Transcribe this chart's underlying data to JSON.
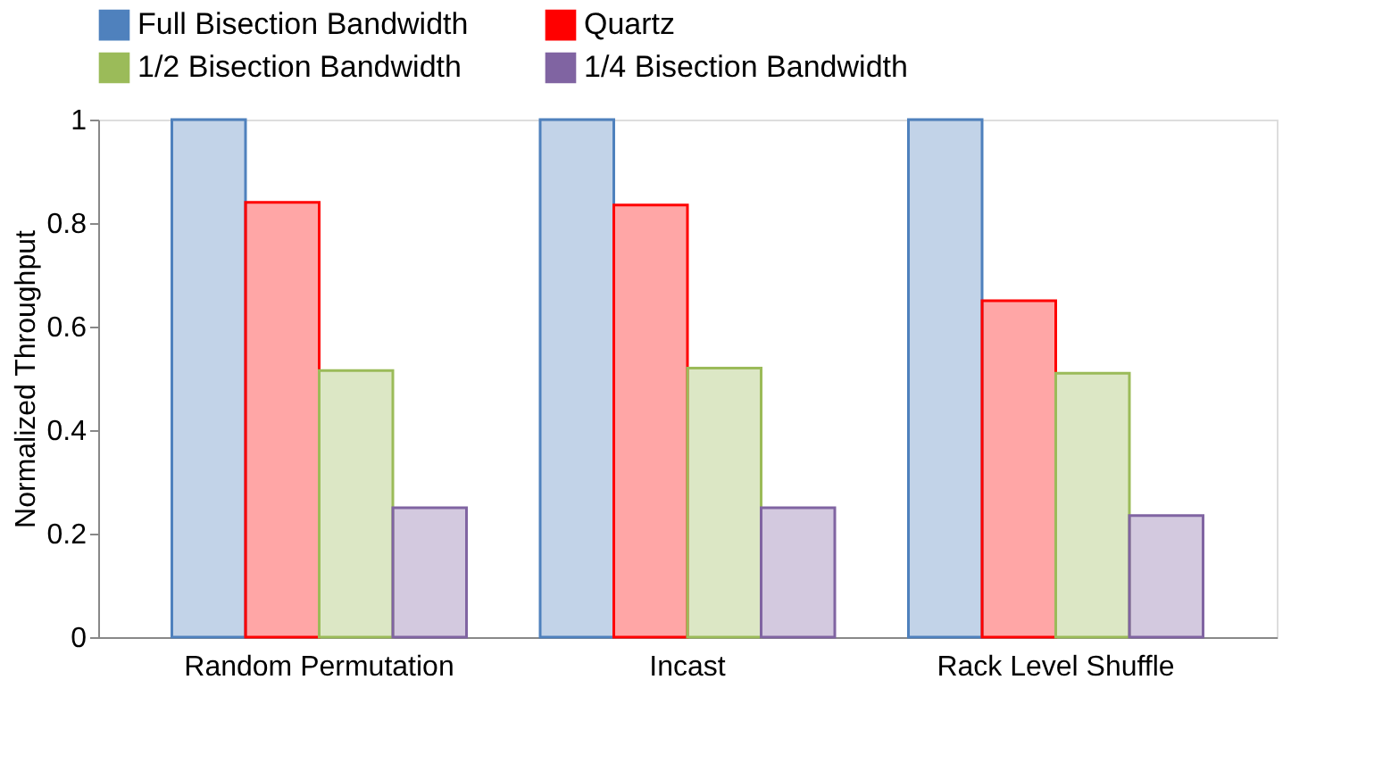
{
  "chart_data": {
    "type": "bar",
    "ylabel": "Normalized Throughput",
    "categories": [
      "Random Permutation",
      "Incast",
      "Rack Level Shuffle"
    ],
    "series": [
      {
        "name": "Full Bisection Bandwidth",
        "color": "#4f81bd",
        "values": [
          1,
          1,
          1
        ]
      },
      {
        "name": "Quartz",
        "color": "#ff0000",
        "values": [
          0.84,
          0.835,
          0.65
        ]
      },
      {
        "name": "1/2 Bisection Bandwidth",
        "color": "#9bbb59",
        "values": [
          0.515,
          0.52,
          0.51
        ]
      },
      {
        "name": "1/4 Bisection Bandwidth",
        "color": "#8064a2",
        "values": [
          0.25,
          0.25,
          0.235
        ]
      }
    ],
    "ylim": [
      0,
      1
    ],
    "yticks": [
      0,
      0.2,
      0.4,
      0.6,
      0.8,
      1
    ],
    "grid": false,
    "legend": "top"
  }
}
